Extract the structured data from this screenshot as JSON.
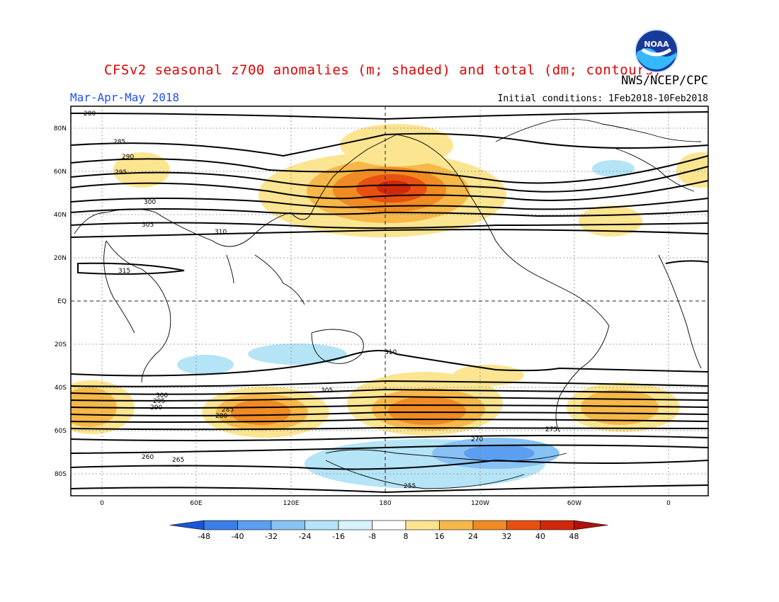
{
  "title": "CFSv2 seasonal z700 anomalies (m; shaded) and total (dm; contours)",
  "agency": "NWS/NCEP/CPC",
  "season": "Mar-Apr-May 2018",
  "initial_conditions": "Initial conditions: 1Feb2018-10Feb2018",
  "logo_text": "NOAA",
  "lat_labels": [
    "80N",
    "60N",
    "40N",
    "20N",
    "EQ",
    "20S",
    "40S",
    "60S",
    "80S"
  ],
  "lon_labels": [
    "0",
    "60E",
    "120E",
    "180",
    "120W",
    "60W",
    "0"
  ],
  "colorbar": {
    "tick_labels": [
      "-48",
      "-40",
      "-32",
      "-24",
      "-16",
      "-8",
      "8",
      "16",
      "24",
      "32",
      "40",
      "48"
    ],
    "colors": [
      "#1a55d8",
      "#3a7ee8",
      "#5c9ef0",
      "#88c2f4",
      "#b4e4f6",
      "#ffffff",
      "#fbe590",
      "#f7b84a",
      "#f08a22",
      "#e85012",
      "#d0280a",
      "#b01010"
    ],
    "low_color": "#1a55d8",
    "high_color": "#b01010"
  },
  "contour_labels": [
    "280",
    "285",
    "290",
    "295",
    "300",
    "305",
    "310",
    "315",
    "310",
    "305",
    "300",
    "295",
    "290",
    "285",
    "280",
    "275",
    "270",
    "265",
    "260",
    "255"
  ]
}
